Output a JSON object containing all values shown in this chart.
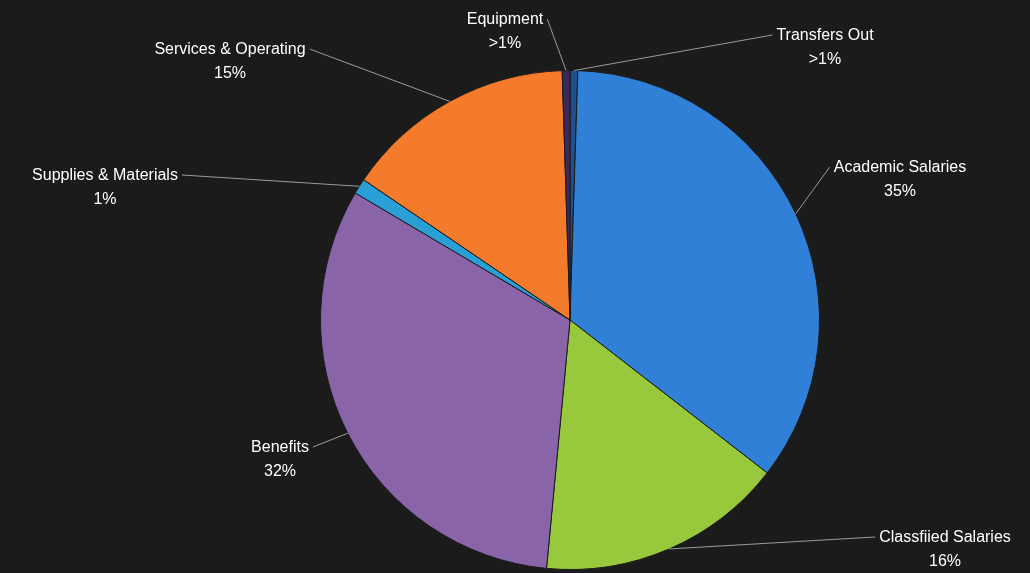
{
  "chart_data": {
    "type": "pie",
    "categories": [
      "Transfers Out",
      "Academic Salaries",
      "Classfiied Salaries",
      "Benefits",
      "Supplies & Materials",
      "Services & Operating",
      "Equipment"
    ],
    "values": [
      0.5,
      35,
      16,
      32,
      1,
      15,
      0.5
    ],
    "value_labels": [
      ">1%",
      "35%",
      "16%",
      "32%",
      "1%",
      "15%",
      ">1%"
    ],
    "colors": [
      "#1f4f8f",
      "#2f80d6",
      "#98c93c",
      "#8a64a8",
      "#2a9fd6",
      "#f47b2c",
      "#3b2a55"
    ]
  }
}
